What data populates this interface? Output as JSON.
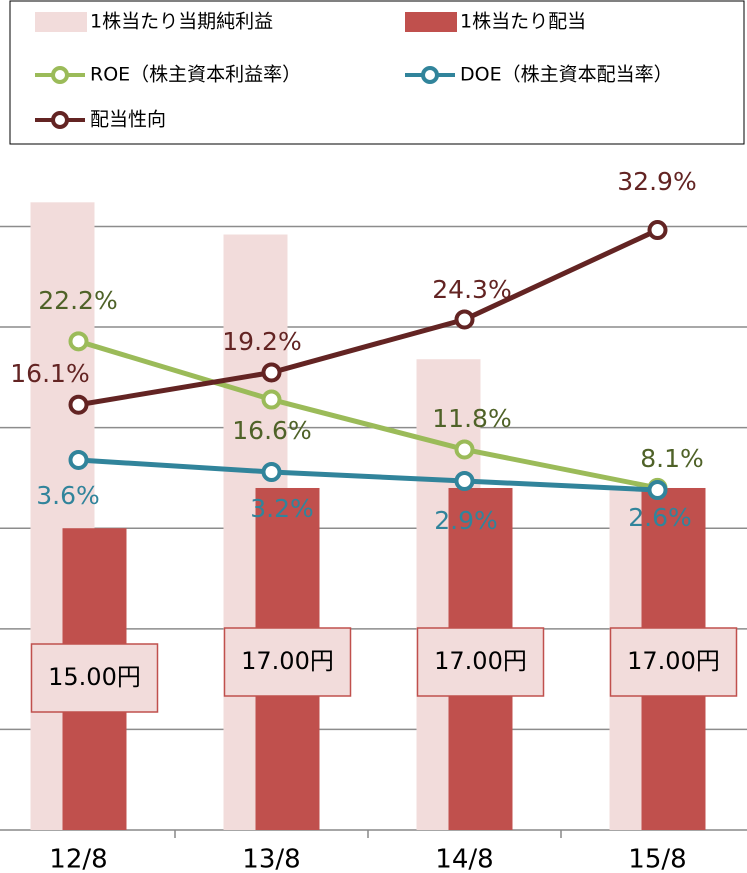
{
  "chart_data": {
    "type": "bar_line",
    "categories": [
      "12/8",
      "13/8",
      "14/8",
      "15/8"
    ],
    "ylim": [
      0,
      33.8
    ],
    "yticks": [
      0,
      5,
      10,
      15,
      20,
      25,
      30
    ],
    "grid": true,
    "y2lim": [
      -24.8,
      40.6
    ],
    "y3lim": [
      -8.73,
      13.93
    ],
    "legend": "top",
    "series": [
      {
        "name": "1株当たり当期純利益",
        "type": "bar",
        "color": "#f2dcdb",
        "values": [
          31.2,
          29.6,
          23.4,
          17
        ]
      },
      {
        "name": "1株当たり配当",
        "type": "bar",
        "color": "#c0504d",
        "values": [
          15,
          17,
          17,
          17
        ],
        "value_labels": [
          "15.00円",
          "17.00円",
          "17.00円",
          "17.00円"
        ]
      },
      {
        "name": "ROE（株主資本利益率）",
        "type": "line",
        "axis": "y2",
        "color": "#9bbb59",
        "label_color": "#4f6228",
        "values": [
          22.2,
          16.6,
          11.8,
          8.1
        ],
        "value_labels": [
          "22.2%",
          "16.6%",
          "11.8%",
          "8.1%"
        ]
      },
      {
        "name": "DOE（株主資本配当率）",
        "type": "line",
        "axis": "y3",
        "color": "#31849b",
        "label_color": "#31849b",
        "values": [
          3.6,
          3.2,
          2.9,
          2.6
        ],
        "value_labels": [
          "3.6%",
          "3.2%",
          "2.9%",
          "2.6%"
        ]
      },
      {
        "name": "配当性向",
        "type": "line",
        "axis": "y2",
        "color": "#632423",
        "label_color": "#632423",
        "values": [
          16.1,
          19.2,
          24.3,
          32.9
        ],
        "value_labels": [
          "16.1%",
          "19.2%",
          "24.3%",
          "32.9%"
        ]
      }
    ]
  }
}
